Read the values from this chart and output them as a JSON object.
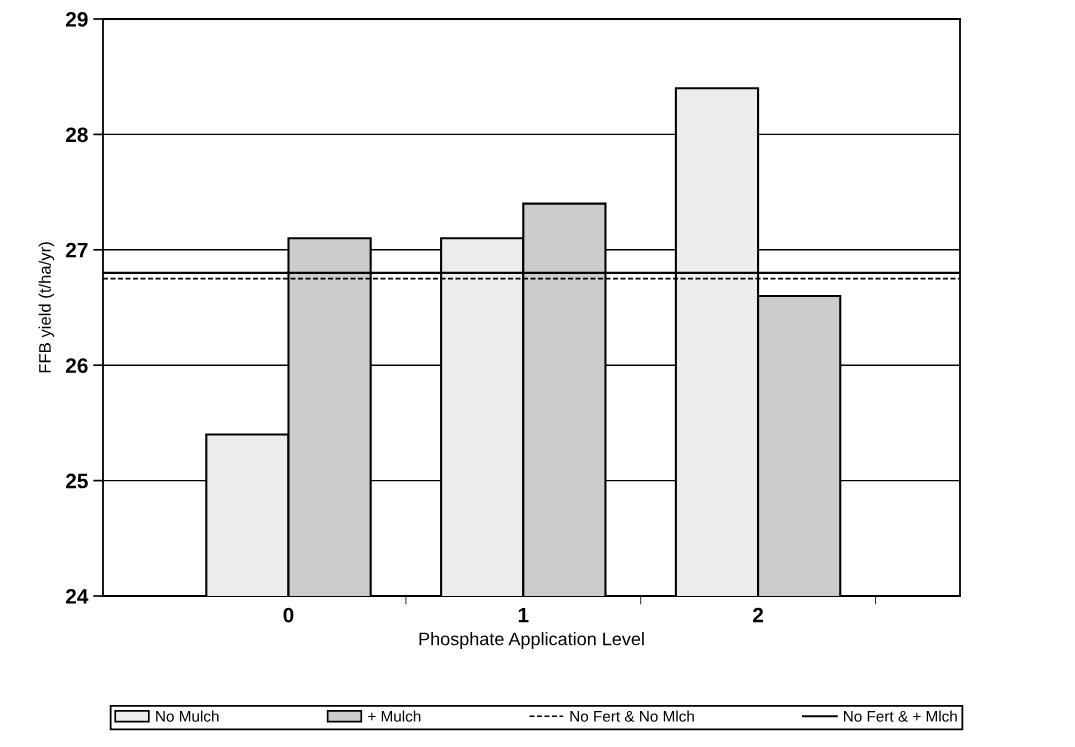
{
  "chart_data": {
    "type": "bar",
    "xlabel": "Phosphate Application Level",
    "ylabel": "FFB yield (t/ha/yr)",
    "categories": [
      "0",
      "1",
      "2"
    ],
    "series": [
      {
        "name": "No Mulch",
        "color": "#ececec",
        "values": [
          25.4,
          27.1,
          28.4
        ]
      },
      {
        "name": "+ Mulch",
        "color": "#cccccc",
        "values": [
          27.1,
          27.4,
          26.6
        ]
      }
    ],
    "ylim": [
      24,
      29
    ],
    "yticks": [
      24,
      25,
      26,
      27,
      28,
      29
    ],
    "grid": "y",
    "legend": "bottom",
    "ref_lines": [
      {
        "axis": "y",
        "value": 26.75,
        "label": "No Fert & No Mlch",
        "color": "#000000",
        "line_style": "dashed"
      },
      {
        "axis": "y",
        "value": 26.8,
        "label": "No Fert & + Mlch",
        "color": "#000000",
        "line_style": "solid"
      }
    ]
  }
}
